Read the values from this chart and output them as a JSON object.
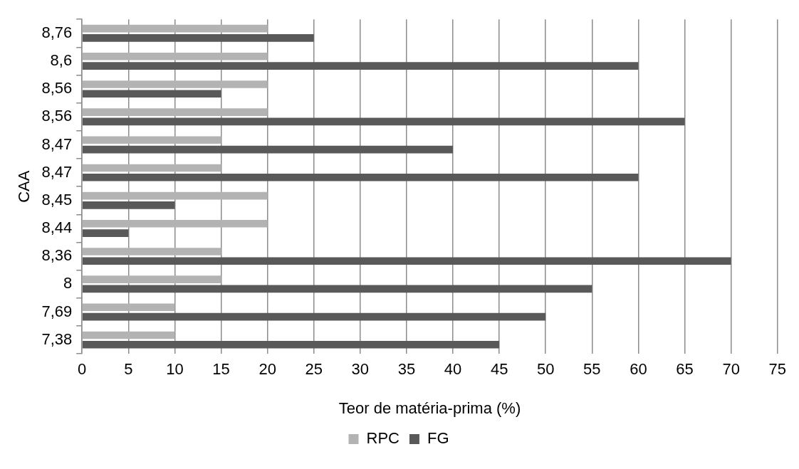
{
  "chart_data": {
    "type": "bar",
    "orientation": "horizontal",
    "xlabel": "Teor de matéria-prima (%)",
    "ylabel": "CAA",
    "categories": [
      "8,76",
      "8,6",
      "8,56",
      "8,56",
      "8,47",
      "8,47",
      "8,45",
      "8,44",
      "8,36",
      "8",
      "7,69",
      "7,38"
    ],
    "series": [
      {
        "name": "RPC",
        "color": "#b3b3b3",
        "values": [
          20,
          20,
          20,
          20,
          15,
          15,
          20,
          20,
          15,
          15,
          10,
          10
        ]
      },
      {
        "name": "FG",
        "color": "#595959",
        "values": [
          25,
          60,
          15,
          65,
          40,
          60,
          10,
          5,
          70,
          55,
          50,
          45
        ]
      }
    ],
    "xlim": [
      0,
      75
    ],
    "xticks": [
      0,
      5,
      10,
      15,
      20,
      25,
      30,
      35,
      40,
      45,
      50,
      55,
      60,
      65,
      70,
      75
    ],
    "grid": "x",
    "legend": "bottom"
  }
}
